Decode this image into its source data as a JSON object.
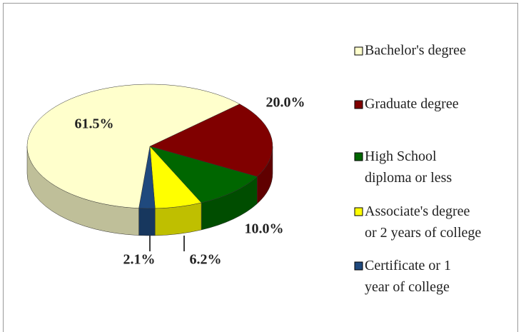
{
  "chart_data": {
    "type": "pie3d",
    "categories": [
      "Bachelor's degree",
      "Graduate degree",
      "High School diploma or less",
      "Associate's degree or 2 years of college",
      "Certificate or 1 year of college"
    ],
    "values": [
      61.5,
      20.0,
      10.0,
      6.2,
      2.1
    ],
    "value_labels": [
      "61.5%",
      "20.0%",
      "10.0%",
      "6.2%",
      "2.1%"
    ],
    "colors": [
      "#ffffcc",
      "#800000",
      "#006600",
      "#ffff00",
      "#1f497d"
    ],
    "legend": "right"
  }
}
